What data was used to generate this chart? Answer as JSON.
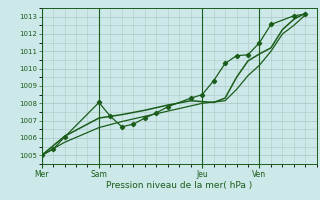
{
  "title": "Pression niveau de la mer( hPa )",
  "bg_color": "#cce8e8",
  "grid_color": "#b0c8c8",
  "line_color": "#1a5c1a",
  "ylim": [
    1004.5,
    1013.5
  ],
  "yticks": [
    1005,
    1006,
    1007,
    1008,
    1009,
    1010,
    1011,
    1012,
    1013
  ],
  "day_positions": [
    0,
    20,
    56,
    76
  ],
  "day_labels": [
    "Mer",
    "Sam",
    "Jeu",
    "Ven"
  ],
  "xlim": [
    0,
    96
  ],
  "line1_x": [
    0,
    4,
    8,
    20,
    24,
    28,
    32,
    36,
    40,
    44,
    52,
    56,
    60,
    64,
    68,
    72,
    76,
    80,
    88,
    92
  ],
  "line1_y": [
    1005.0,
    1005.35,
    1006.05,
    1008.05,
    1007.25,
    1006.65,
    1006.8,
    1007.15,
    1007.45,
    1007.8,
    1008.3,
    1008.5,
    1009.3,
    1010.3,
    1010.75,
    1010.8,
    1011.5,
    1012.55,
    1013.05,
    1013.15
  ],
  "line2_x": [
    0,
    8,
    20,
    28,
    36,
    44,
    52,
    60,
    64,
    68,
    72,
    76,
    80,
    84,
    88,
    92
  ],
  "line2_y": [
    1005.0,
    1006.1,
    1007.15,
    1007.35,
    1007.6,
    1007.9,
    1008.15,
    1008.05,
    1008.3,
    1009.5,
    1010.45,
    1010.85,
    1011.2,
    1012.25,
    1012.85,
    1013.2
  ],
  "line3_x": [
    0,
    8,
    20,
    28,
    36,
    44,
    52,
    56,
    64,
    68,
    72,
    76,
    80,
    84,
    88,
    92
  ],
  "line3_y": [
    1005.0,
    1005.75,
    1006.6,
    1006.95,
    1007.25,
    1007.55,
    1007.85,
    1008.0,
    1008.15,
    1008.8,
    1009.6,
    1010.2,
    1011.0,
    1012.0,
    1012.5,
    1013.1
  ],
  "minor_grid_step": 4
}
